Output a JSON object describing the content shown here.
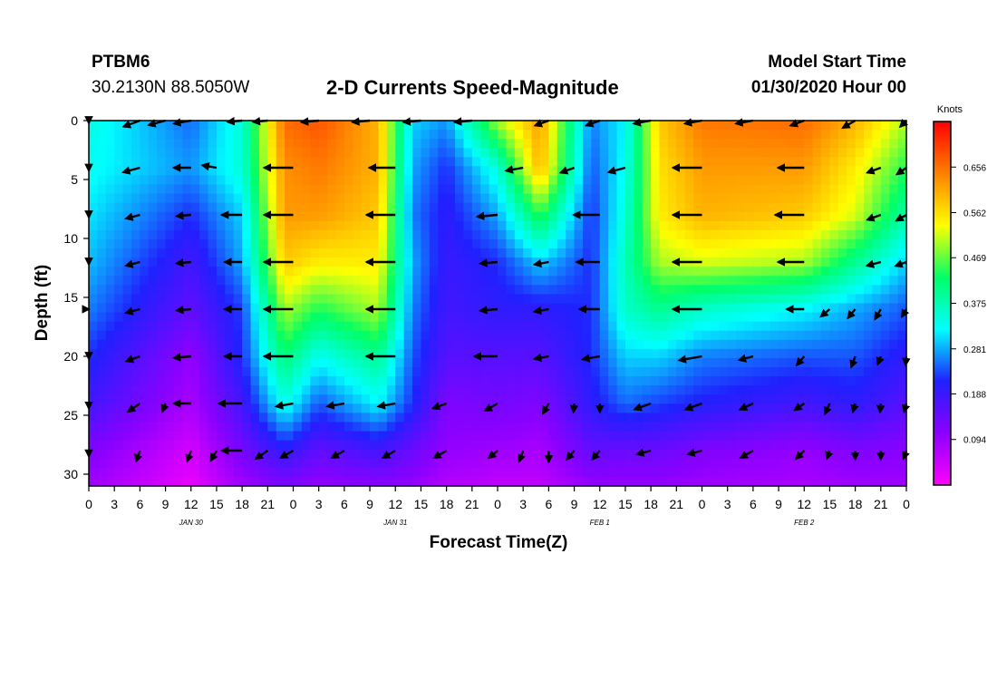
{
  "header": {
    "station": "PTBM6",
    "coords": "30.2130N 88.5050W",
    "title": "2-D Currents Speed-Magnitude",
    "model_start_label": "Model Start Time",
    "model_start_value": "01/30/2020 Hour 00"
  },
  "chart_data": {
    "type": "heatmap",
    "title": "2-D Currents Speed-Magnitude",
    "xlabel": "Forecast Time(Z)",
    "ylabel": "Depth (ft)",
    "x_ticks": [
      "0",
      "3",
      "6",
      "9",
      "12",
      "15",
      "18",
      "21",
      "0",
      "3",
      "6",
      "9",
      "12",
      "15",
      "18",
      "21",
      "0",
      "3",
      "6",
      "9",
      "12",
      "15",
      "18",
      "21",
      "0",
      "3",
      "6",
      "9",
      "12",
      "15",
      "18",
      "21",
      "0"
    ],
    "date_labels": [
      {
        "label": "JAN 30",
        "hour": 12
      },
      {
        "label": "JAN 31",
        "hour": 36
      },
      {
        "label": "FEB 1",
        "hour": 60
      },
      {
        "label": "FEB 2",
        "hour": 84
      }
    ],
    "xlim": [
      0,
      96
    ],
    "ylim": [
      0,
      31
    ],
    "y_ticks": [
      0,
      5,
      10,
      15,
      20,
      25,
      30
    ],
    "colorbar": {
      "label": "Knots",
      "ticks": [
        0.094,
        0.188,
        0.281,
        0.375,
        0.469,
        0.562,
        0.656
      ],
      "range": [
        0,
        0.75
      ],
      "colors": [
        "#ff00ff",
        "#8c00ff",
        "#2020ff",
        "#00ffff",
        "#00ff66",
        "#ffff00",
        "#ff8000",
        "#ff0000"
      ]
    },
    "hours": [
      0,
      12,
      18,
      23,
      27,
      34,
      38,
      42,
      48,
      53,
      59,
      63,
      67,
      72,
      84,
      90,
      96
    ],
    "depths": [
      0,
      4,
      8,
      12,
      16,
      20,
      24,
      28,
      31
    ],
    "speeds": [
      [
        0.34,
        0.25,
        0.35,
        0.66,
        0.68,
        0.6,
        0.3,
        0.27,
        0.5,
        0.62,
        0.26,
        0.32,
        0.58,
        0.65,
        0.66,
        0.6,
        0.5
      ],
      [
        0.33,
        0.27,
        0.35,
        0.63,
        0.65,
        0.6,
        0.28,
        0.22,
        0.35,
        0.6,
        0.24,
        0.33,
        0.56,
        0.62,
        0.62,
        0.55,
        0.44
      ],
      [
        0.31,
        0.22,
        0.3,
        0.62,
        0.62,
        0.58,
        0.26,
        0.2,
        0.28,
        0.45,
        0.22,
        0.35,
        0.55,
        0.6,
        0.58,
        0.52,
        0.38
      ],
      [
        0.29,
        0.18,
        0.28,
        0.58,
        0.55,
        0.55,
        0.28,
        0.19,
        0.22,
        0.3,
        0.22,
        0.37,
        0.5,
        0.52,
        0.5,
        0.4,
        0.3
      ],
      [
        0.26,
        0.15,
        0.23,
        0.5,
        0.44,
        0.5,
        0.26,
        0.18,
        0.2,
        0.2,
        0.22,
        0.36,
        0.4,
        0.36,
        0.32,
        0.28,
        0.24
      ],
      [
        0.22,
        0.1,
        0.22,
        0.42,
        0.33,
        0.4,
        0.24,
        0.16,
        0.16,
        0.16,
        0.22,
        0.3,
        0.3,
        0.26,
        0.24,
        0.24,
        0.2
      ],
      [
        0.18,
        0.08,
        0.18,
        0.34,
        0.24,
        0.32,
        0.22,
        0.12,
        0.13,
        0.12,
        0.2,
        0.25,
        0.23,
        0.21,
        0.18,
        0.2,
        0.16
      ],
      [
        0.12,
        0.04,
        0.13,
        0.2,
        0.15,
        0.18,
        0.14,
        0.1,
        0.09,
        0.08,
        0.15,
        0.14,
        0.14,
        0.12,
        0.1,
        0.12,
        0.11
      ],
      [
        0.09,
        0.02,
        0.09,
        0.12,
        0.1,
        0.11,
        0.1,
        0.07,
        0.06,
        0.06,
        0.1,
        0.1,
        0.1,
        0.09,
        0.08,
        0.09,
        0.09
      ]
    ],
    "vector_rows": [
      {
        "depth": 0,
        "hours": [
          0,
          6,
          9,
          12,
          18,
          21,
          27,
          33,
          39,
          45,
          54,
          60,
          66,
          72,
          78,
          84,
          90,
          96
        ],
        "lengths": [
          0.5,
          0.6,
          0.6,
          0.6,
          0.5,
          0.5,
          0.6,
          0.6,
          0.6,
          0.6,
          0.5,
          0.5,
          0.6,
          0.6,
          0.6,
          0.5,
          0.5,
          0.3
        ],
        "angles": [
          190,
          200,
          195,
          190,
          185,
          185,
          185,
          185,
          185,
          185,
          200,
          200,
          190,
          190,
          190,
          200,
          210,
          225
        ]
      },
      {
        "depth": 4,
        "hours": [
          0,
          6,
          12,
          15,
          24,
          36,
          51,
          57,
          63,
          72,
          84,
          93,
          96
        ],
        "lengths": [
          0.6,
          0.6,
          0.6,
          0.5,
          1.0,
          0.9,
          0.6,
          0.5,
          0.6,
          1.0,
          0.9,
          0.5,
          0.4
        ],
        "angles": [
          190,
          195,
          180,
          170,
          180,
          180,
          190,
          200,
          195,
          180,
          180,
          200,
          215
        ]
      },
      {
        "depth": 8,
        "hours": [
          0,
          6,
          12,
          18,
          24,
          36,
          48,
          60,
          72,
          84,
          93,
          96
        ],
        "lengths": [
          0.5,
          0.5,
          0.5,
          0.7,
          1.0,
          1.0,
          0.7,
          0.9,
          1.0,
          1.0,
          0.5,
          0.4
        ],
        "angles": [
          190,
          195,
          185,
          180,
          180,
          180,
          185,
          180,
          180,
          180,
          200,
          210
        ]
      },
      {
        "depth": 12,
        "hours": [
          0,
          6,
          12,
          18,
          24,
          36,
          48,
          54,
          60,
          72,
          84,
          93,
          96
        ],
        "lengths": [
          0.5,
          0.5,
          0.5,
          0.6,
          1.0,
          1.0,
          0.6,
          0.5,
          0.8,
          1.0,
          0.9,
          0.5,
          0.4
        ],
        "angles": [
          190,
          195,
          185,
          180,
          180,
          180,
          185,
          190,
          180,
          180,
          180,
          195,
          200
        ]
      },
      {
        "depth": 16,
        "hours": [
          0,
          6,
          12,
          18,
          24,
          36,
          48,
          54,
          60,
          72,
          84,
          87,
          90,
          93,
          96
        ],
        "lengths": [
          0.5,
          0.5,
          0.5,
          0.6,
          1.0,
          1.0,
          0.6,
          0.5,
          0.7,
          1.0,
          0.6,
          0.4,
          0.4,
          0.4,
          0.3
        ],
        "angles": [
          180,
          195,
          185,
          180,
          180,
          180,
          185,
          190,
          180,
          180,
          180,
          220,
          230,
          240,
          240
        ]
      },
      {
        "depth": 20,
        "hours": [
          0,
          6,
          12,
          18,
          24,
          36,
          48,
          54,
          60,
          72,
          78,
          84,
          90,
          93,
          96
        ],
        "lengths": [
          0.5,
          0.5,
          0.6,
          0.6,
          1.0,
          1.0,
          0.8,
          0.5,
          0.6,
          0.8,
          0.5,
          0.4,
          0.4,
          0.3,
          0.3
        ],
        "angles": [
          190,
          200,
          185,
          180,
          180,
          180,
          180,
          190,
          190,
          190,
          195,
          230,
          250,
          250,
          265
        ]
      },
      {
        "depth": 24,
        "hours": [
          0,
          6,
          9,
          12,
          18,
          24,
          30,
          36,
          42,
          48,
          54,
          57,
          60,
          66,
          72,
          78,
          84,
          87,
          90,
          93,
          96
        ],
        "lengths": [
          0.5,
          0.5,
          0.3,
          0.6,
          0.8,
          0.6,
          0.6,
          0.6,
          0.5,
          0.5,
          0.4,
          0.3,
          0.3,
          0.6,
          0.6,
          0.5,
          0.4,
          0.4,
          0.3,
          0.3,
          0.3
        ],
        "angles": [
          200,
          215,
          250,
          180,
          180,
          190,
          190,
          190,
          200,
          210,
          240,
          265,
          270,
          200,
          200,
          205,
          215,
          245,
          255,
          265,
          255
        ]
      },
      {
        "depth": 28,
        "hours": [
          0,
          6,
          12,
          15,
          18,
          21,
          24,
          30,
          36,
          42,
          48,
          51,
          54,
          57,
          60,
          66,
          72,
          78,
          84,
          87,
          90,
          93,
          96
        ],
        "lengths": [
          0.4,
          0.4,
          0.4,
          0.4,
          0.7,
          0.5,
          0.5,
          0.5,
          0.5,
          0.5,
          0.4,
          0.4,
          0.4,
          0.4,
          0.4,
          0.5,
          0.5,
          0.5,
          0.4,
          0.3,
          0.3,
          0.3,
          0.3
        ],
        "angles": [
          210,
          250,
          250,
          240,
          180,
          215,
          210,
          210,
          210,
          210,
          220,
          250,
          270,
          230,
          230,
          195,
          195,
          210,
          225,
          250,
          270,
          270,
          250
        ]
      }
    ]
  }
}
